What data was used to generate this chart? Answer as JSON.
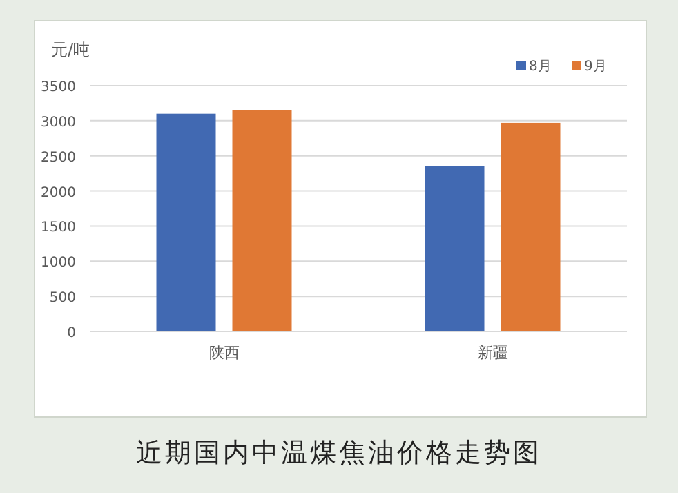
{
  "chart_data": {
    "type": "bar",
    "title": "近期国内中温煤焦油价格走势图",
    "ylabel": "元/吨",
    "categories": [
      "陕西",
      "新疆"
    ],
    "series": [
      {
        "name": "8月",
        "color": "#4169b2",
        "values": [
          3100,
          2350
        ]
      },
      {
        "name": "9月",
        "color": "#e07834",
        "values": [
          3150,
          2970
        ]
      }
    ],
    "ylim": [
      0,
      3500
    ],
    "yticks": [
      0,
      500,
      1000,
      1500,
      2000,
      2500,
      3000,
      3500
    ],
    "grid": "y",
    "legend": "top right"
  }
}
